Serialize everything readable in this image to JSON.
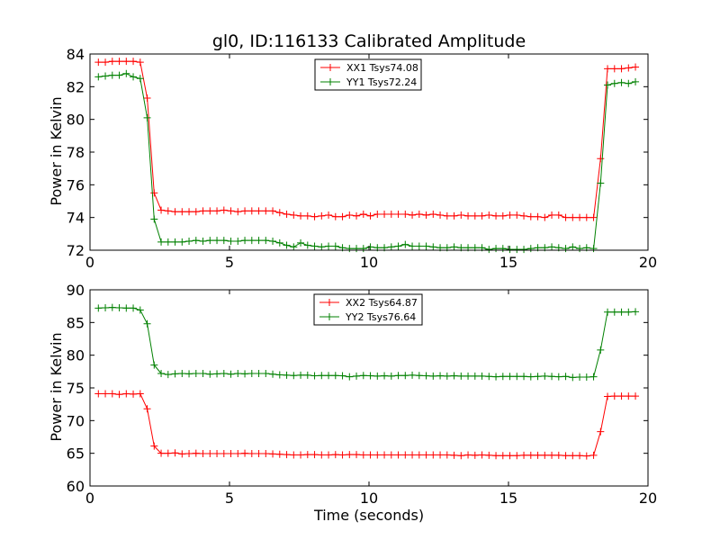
{
  "chart_data": [
    {
      "type": "line",
      "title": "gl0, ID:116133 Calibrated Amplitude",
      "xlabel": "",
      "ylabel": "Power in Kelvin",
      "xlim": [
        0,
        20
      ],
      "ylim": [
        72,
        84
      ],
      "xticks": [
        0,
        5,
        10,
        15,
        20
      ],
      "yticks": [
        72,
        74,
        76,
        78,
        80,
        82,
        84
      ],
      "legend_position": "top-center",
      "x": [
        0.3,
        0.55,
        0.8,
        1.05,
        1.3,
        1.55,
        1.8,
        2.05,
        2.3,
        2.55,
        2.8,
        3.05,
        3.3,
        3.55,
        3.8,
        4.05,
        4.3,
        4.55,
        4.8,
        5.05,
        5.3,
        5.55,
        5.8,
        6.05,
        6.3,
        6.55,
        6.8,
        7.05,
        7.3,
        7.55,
        7.8,
        8.05,
        8.3,
        8.55,
        8.8,
        9.05,
        9.3,
        9.55,
        9.8,
        10.05,
        10.3,
        10.55,
        10.8,
        11.05,
        11.3,
        11.55,
        11.8,
        12.05,
        12.3,
        12.55,
        12.8,
        13.05,
        13.3,
        13.55,
        13.8,
        14.05,
        14.3,
        14.55,
        14.8,
        15.05,
        15.3,
        15.55,
        15.8,
        16.05,
        16.3,
        16.55,
        16.8,
        17.05,
        17.3,
        17.55,
        17.8,
        18.05,
        18.3,
        18.55,
        18.8,
        19.05,
        19.3,
        19.55
      ],
      "series": [
        {
          "name": "XX1 Tsys74.08",
          "color": "#ff0000",
          "values": [
            83.5,
            83.5,
            83.55,
            83.55,
            83.55,
            83.55,
            83.5,
            81.3,
            75.5,
            74.45,
            74.4,
            74.35,
            74.35,
            74.35,
            74.35,
            74.4,
            74.4,
            74.4,
            74.45,
            74.4,
            74.35,
            74.4,
            74.4,
            74.4,
            74.4,
            74.4,
            74.3,
            74.2,
            74.15,
            74.1,
            74.1,
            74.05,
            74.1,
            74.15,
            74.05,
            74.05,
            74.15,
            74.1,
            74.2,
            74.1,
            74.2,
            74.2,
            74.2,
            74.2,
            74.2,
            74.15,
            74.2,
            74.15,
            74.2,
            74.15,
            74.1,
            74.1,
            74.15,
            74.1,
            74.1,
            74.1,
            74.15,
            74.1,
            74.1,
            74.15,
            74.15,
            74.1,
            74.05,
            74.05,
            74.0,
            74.15,
            74.15,
            74.0,
            74.0,
            74.0,
            74.0,
            74.0,
            77.6,
            83.1,
            83.1,
            83.1,
            83.15,
            83.2
          ]
        },
        {
          "name": "YY1 Tsys72.24",
          "color": "#008000",
          "values": [
            82.6,
            82.65,
            82.7,
            82.7,
            82.8,
            82.6,
            82.5,
            80.1,
            73.9,
            72.5,
            72.5,
            72.5,
            72.5,
            72.55,
            72.6,
            72.55,
            72.6,
            72.6,
            72.6,
            72.55,
            72.55,
            72.6,
            72.6,
            72.6,
            72.6,
            72.55,
            72.45,
            72.3,
            72.2,
            72.45,
            72.3,
            72.25,
            72.2,
            72.25,
            72.25,
            72.15,
            72.1,
            72.1,
            72.1,
            72.2,
            72.15,
            72.15,
            72.2,
            72.25,
            72.35,
            72.25,
            72.25,
            72.25,
            72.2,
            72.15,
            72.15,
            72.2,
            72.15,
            72.15,
            72.15,
            72.15,
            72.05,
            72.1,
            72.1,
            72.05,
            72.05,
            72.05,
            72.1,
            72.15,
            72.15,
            72.2,
            72.15,
            72.1,
            72.2,
            72.1,
            72.15,
            72.1,
            76.1,
            82.1,
            82.2,
            82.25,
            82.2,
            82.3
          ]
        }
      ]
    },
    {
      "type": "line",
      "title": "",
      "xlabel": "Time (seconds)",
      "ylabel": "Power in Kelvin",
      "xlim": [
        0,
        20
      ],
      "ylim": [
        60,
        90
      ],
      "xticks": [
        0,
        5,
        10,
        15,
        20
      ],
      "yticks": [
        60,
        65,
        70,
        75,
        80,
        85,
        90
      ],
      "legend_position": "top-center",
      "x": [
        0.3,
        0.55,
        0.8,
        1.05,
        1.3,
        1.55,
        1.8,
        2.05,
        2.3,
        2.55,
        2.8,
        3.05,
        3.3,
        3.55,
        3.8,
        4.05,
        4.3,
        4.55,
        4.8,
        5.05,
        5.3,
        5.55,
        5.8,
        6.05,
        6.3,
        6.55,
        6.8,
        7.05,
        7.3,
        7.55,
        7.8,
        8.05,
        8.3,
        8.55,
        8.8,
        9.05,
        9.3,
        9.55,
        9.8,
        10.05,
        10.3,
        10.55,
        10.8,
        11.05,
        11.3,
        11.55,
        11.8,
        12.05,
        12.3,
        12.55,
        12.8,
        13.05,
        13.3,
        13.55,
        13.8,
        14.05,
        14.3,
        14.55,
        14.8,
        15.05,
        15.3,
        15.55,
        15.8,
        16.05,
        16.3,
        16.55,
        16.8,
        17.05,
        17.3,
        17.55,
        17.8,
        18.05,
        18.3,
        18.55,
        18.8,
        19.05,
        19.3,
        19.55
      ],
      "series": [
        {
          "name": "XX2 Tsys64.87",
          "color": "#ff0000",
          "values": [
            74.1,
            74.1,
            74.1,
            74.0,
            74.1,
            74.05,
            74.1,
            71.8,
            66.1,
            65.0,
            65.0,
            65.05,
            64.9,
            64.95,
            65.0,
            64.95,
            64.95,
            64.95,
            64.95,
            64.95,
            64.95,
            65.0,
            64.95,
            64.95,
            64.95,
            64.9,
            64.85,
            64.8,
            64.75,
            64.75,
            64.8,
            64.8,
            64.75,
            64.75,
            64.8,
            64.75,
            64.8,
            64.8,
            64.75,
            64.75,
            64.75,
            64.75,
            64.75,
            64.75,
            64.75,
            64.75,
            64.75,
            64.75,
            64.75,
            64.75,
            64.75,
            64.7,
            64.65,
            64.75,
            64.7,
            64.75,
            64.7,
            64.65,
            64.65,
            64.65,
            64.65,
            64.7,
            64.7,
            64.7,
            64.7,
            64.7,
            64.7,
            64.65,
            64.65,
            64.65,
            64.6,
            64.7,
            68.3,
            73.7,
            73.75,
            73.75,
            73.75,
            73.75
          ]
        },
        {
          "name": "YY2 Tsys76.64",
          "color": "#008000",
          "values": [
            87.2,
            87.25,
            87.3,
            87.25,
            87.2,
            87.2,
            86.9,
            84.8,
            78.5,
            77.2,
            77.05,
            77.15,
            77.2,
            77.15,
            77.2,
            77.2,
            77.1,
            77.15,
            77.2,
            77.1,
            77.2,
            77.15,
            77.2,
            77.2,
            77.2,
            77.1,
            77.0,
            76.95,
            76.9,
            76.95,
            76.95,
            76.85,
            76.9,
            76.9,
            76.9,
            76.85,
            76.7,
            76.8,
            76.9,
            76.85,
            76.8,
            76.85,
            76.8,
            76.9,
            76.9,
            76.95,
            76.9,
            76.85,
            76.8,
            76.85,
            76.8,
            76.85,
            76.8,
            76.8,
            76.8,
            76.8,
            76.75,
            76.7,
            76.75,
            76.75,
            76.75,
            76.75,
            76.7,
            76.75,
            76.8,
            76.75,
            76.7,
            76.75,
            76.6,
            76.65,
            76.65,
            76.7,
            80.8,
            86.6,
            86.6,
            86.6,
            86.6,
            86.65
          ]
        }
      ]
    }
  ]
}
